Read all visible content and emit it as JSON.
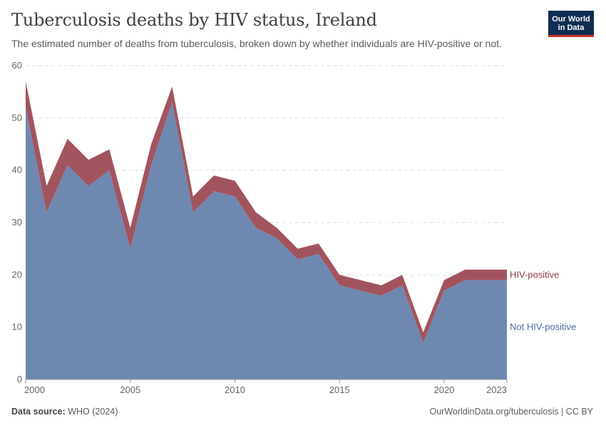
{
  "header": {
    "title": "Tuberculosis deaths by HIV status, Ireland",
    "subtitle": "The estimated number of deaths from tuberculosis, broken down by whether individuals are HIV-positive or not.",
    "logo_line1": "Our World",
    "logo_line2": "in Data"
  },
  "footer": {
    "source_label": "Data source:",
    "source_value": "WHO (2024)",
    "credit": "OurWorldinData.org/tuberculosis | CC BY"
  },
  "colors": {
    "not_hiv": "#6f88b0",
    "hiv": "#a2545e",
    "not_hiv_label": "#4a6a9c",
    "hiv_label": "#8c3a45"
  },
  "chart_data": {
    "type": "area",
    "stacked": true,
    "x": [
      2000,
      2001,
      2002,
      2003,
      2004,
      2005,
      2006,
      2007,
      2008,
      2009,
      2010,
      2011,
      2012,
      2013,
      2014,
      2015,
      2016,
      2017,
      2018,
      2019,
      2020,
      2021,
      2022,
      2023
    ],
    "series": [
      {
        "name": "Not HIV-positive",
        "values": [
          52,
          32,
          41,
          37,
          40,
          25,
          41,
          53,
          32,
          36,
          35,
          29,
          27,
          23,
          24,
          18,
          17,
          16,
          18,
          7,
          17,
          19,
          19,
          19
        ]
      },
      {
        "name": "HIV-positive",
        "values": [
          5,
          5,
          5,
          5,
          4,
          4,
          4,
          3,
          3,
          3,
          3,
          3,
          2,
          2,
          2,
          2,
          2,
          2,
          2,
          2,
          2,
          2,
          2,
          2
        ]
      }
    ],
    "ylim": [
      0,
      60
    ],
    "yticks": [
      0,
      10,
      20,
      30,
      40,
      50,
      60
    ],
    "xticks": [
      2000,
      2005,
      2010,
      2015,
      2020,
      2023
    ],
    "grid": true,
    "legend": "inline-right"
  }
}
